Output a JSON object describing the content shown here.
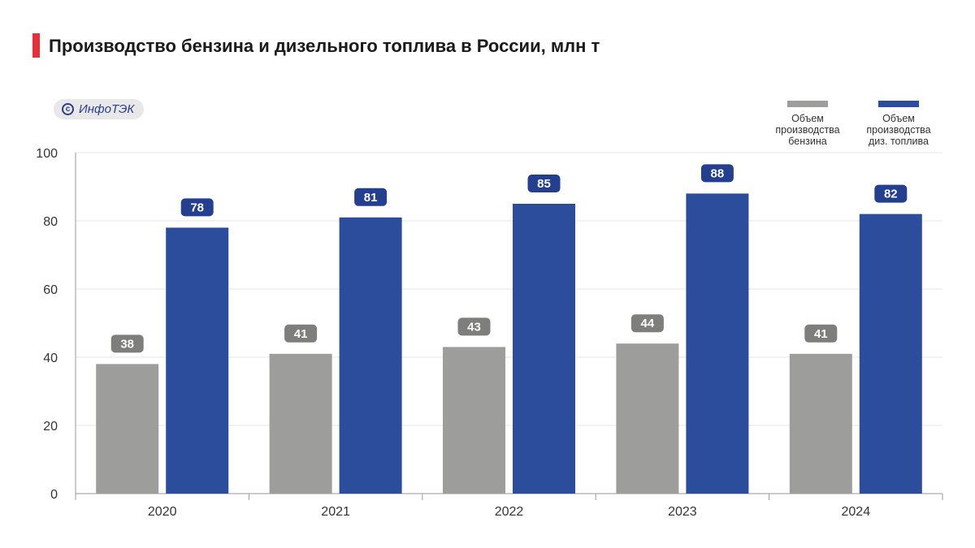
{
  "header": {
    "title": "Производство бензина и дизельного топлива в России, млн т",
    "source": "ИнфоТЭК",
    "source_icon": "copyright-icon"
  },
  "colors": {
    "accent": "#e3303a",
    "gasoline": "#9d9d9b",
    "diesel": "#2c4c9c",
    "gasoline_label": "#7e7e7c",
    "diesel_label": "#233f8e"
  },
  "chart_data": {
    "type": "bar",
    "title": "Производство бензина и дизельного топлива в России, млн т",
    "xlabel": "",
    "ylabel": "",
    "categories": [
      "2020",
      "2021",
      "2022",
      "2023",
      "2024"
    ],
    "series": [
      {
        "name": "Объем производства бензина",
        "values": [
          38,
          41,
          43,
          44,
          41
        ]
      },
      {
        "name": "Объем производства диз. топлива",
        "values": [
          78,
          81,
          85,
          88,
          82
        ]
      }
    ],
    "ylim": [
      0,
      100
    ],
    "yticks": [
      0,
      20,
      40,
      60,
      80,
      100
    ],
    "grid": true,
    "legend": "top-right",
    "data_labels": true
  },
  "legend": {
    "items": [
      {
        "label": "Объем\nпроизводства\nбензина"
      },
      {
        "label": "Объем\nпроизводства\nдиз. топлива"
      }
    ]
  }
}
